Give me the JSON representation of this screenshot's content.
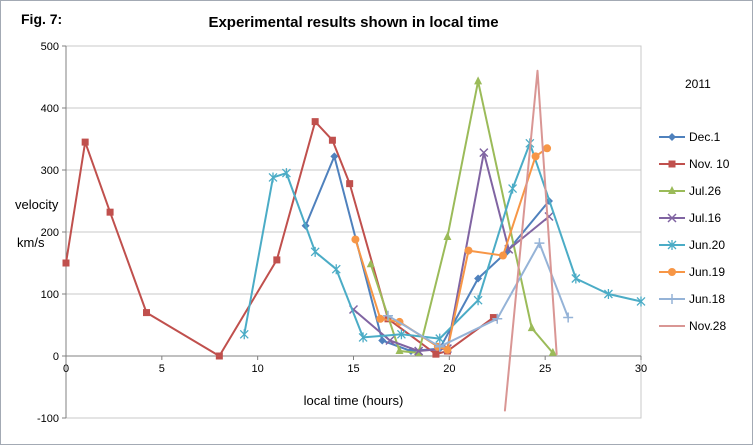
{
  "figure": {
    "label": "Fig. 7:",
    "title": "Experimental results shown in local time",
    "year_label": "2011"
  },
  "axes": {
    "y_label_line1": "velocity",
    "y_label_line2": "km/s",
    "x_label": "local time (hours)"
  },
  "chart_data": {
    "type": "line",
    "title": "Experimental results shown in local time",
    "xlabel": "local time (hours)",
    "ylabel": "velocity km/s",
    "xlim": [
      0,
      30
    ],
    "ylim": [
      -100,
      500
    ],
    "x_ticks": [
      0,
      5,
      10,
      15,
      20,
      25,
      30
    ],
    "y_ticks": [
      -100,
      0,
      100,
      200,
      300,
      400,
      500
    ],
    "grid": "horizontal",
    "legend_position": "right",
    "legend_title": "2011",
    "series": [
      {
        "name": "Dec.1",
        "color": "#4F81BD",
        "marker": "diamond",
        "points": [
          [
            12.5,
            210
          ],
          [
            14,
            322
          ],
          [
            16.5,
            25
          ],
          [
            18,
            8
          ],
          [
            19.5,
            12
          ],
          [
            21.5,
            125
          ],
          [
            23,
            168
          ],
          [
            25.2,
            250
          ]
        ]
      },
      {
        "name": "Nov. 10",
        "color": "#C0504D",
        "marker": "square",
        "points": [
          [
            0,
            150
          ],
          [
            1,
            345
          ],
          [
            2.3,
            232
          ],
          [
            4.2,
            70
          ],
          [
            8,
            0
          ],
          [
            11,
            155
          ],
          [
            13,
            378
          ],
          [
            13.9,
            348
          ],
          [
            14.8,
            278
          ],
          [
            16.8,
            60
          ],
          [
            19.3,
            3
          ],
          [
            19.9,
            8
          ],
          [
            22.3,
            62
          ]
        ]
      },
      {
        "name": "Jul.26",
        "color": "#9BBB59",
        "marker": "triangle",
        "points": [
          [
            15.9,
            148
          ],
          [
            17.4,
            8
          ],
          [
            18.4,
            5
          ],
          [
            19.9,
            192
          ],
          [
            21.5,
            443
          ],
          [
            24.3,
            45
          ],
          [
            25.4,
            5
          ]
        ]
      },
      {
        "name": "Jul.16",
        "color": "#8064A2",
        "marker": "x",
        "points": [
          [
            15,
            75
          ],
          [
            16.9,
            25
          ],
          [
            18.4,
            8
          ],
          [
            19.9,
            12
          ],
          [
            21.8,
            328
          ],
          [
            23.1,
            172
          ],
          [
            25.2,
            225
          ]
        ]
      },
      {
        "name": "Jun.20",
        "color": "#4BACC6",
        "marker": "asterisk",
        "points": [
          [
            9.3,
            35
          ],
          [
            10.8,
            288
          ],
          [
            11.5,
            295
          ],
          [
            13,
            168
          ],
          [
            14.1,
            140
          ],
          [
            15.5,
            30
          ],
          [
            17.5,
            35
          ],
          [
            19.5,
            28
          ],
          [
            21.5,
            90
          ],
          [
            23.3,
            270
          ],
          [
            24.2,
            343
          ],
          [
            26.6,
            125
          ],
          [
            28.3,
            100
          ],
          [
            30,
            88
          ]
        ]
      },
      {
        "name": "Jun.19",
        "color": "#F79646",
        "marker": "circle",
        "points": [
          [
            15.1,
            188
          ],
          [
            16.4,
            60
          ],
          [
            17.4,
            55
          ],
          [
            19.4,
            15
          ],
          [
            19.9,
            10
          ],
          [
            21,
            170
          ],
          [
            22.8,
            162
          ],
          [
            24.5,
            322
          ],
          [
            25.1,
            335
          ]
        ]
      },
      {
        "name": "Jun.18",
        "color": "#95B3D7",
        "marker": "plus",
        "points": [
          [
            16.8,
            65
          ],
          [
            19.5,
            15
          ],
          [
            22.5,
            60
          ],
          [
            24.7,
            182
          ],
          [
            26.2,
            62
          ]
        ]
      },
      {
        "name": "Nov.28",
        "color": "#D99694",
        "marker": "none",
        "points": [
          [
            22.9,
            -88
          ],
          [
            24.6,
            460
          ],
          [
            25.6,
            3
          ]
        ]
      }
    ]
  },
  "style": {
    "gridline_color": "#c9c9c9",
    "axis_color": "#808080"
  }
}
